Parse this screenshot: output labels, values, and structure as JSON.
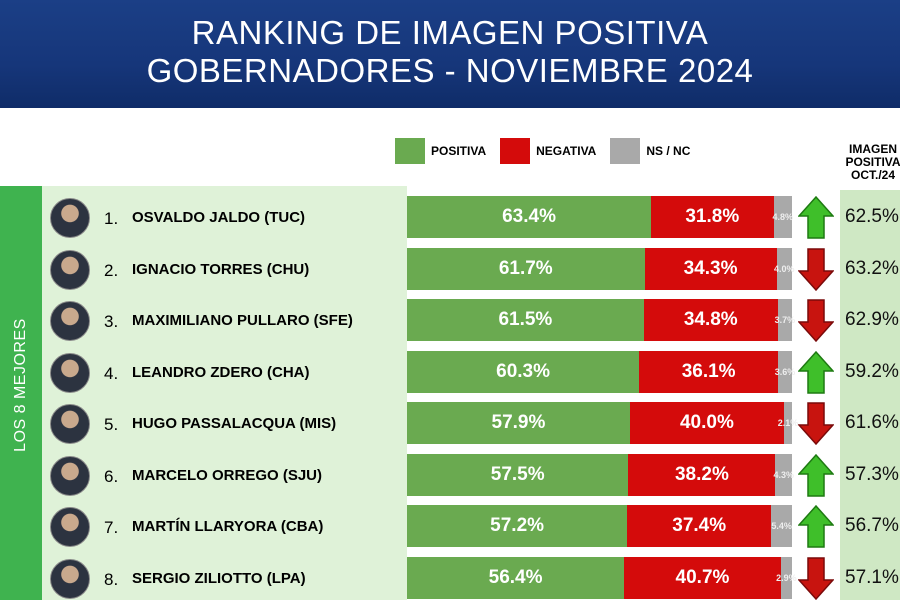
{
  "header": {
    "line1": "RANKING DE IMAGEN POSITIVA",
    "line2": "GOBERNADORES - NOVIEMBRE 2024"
  },
  "side_label": "LOS 8 MEJORES",
  "prev_header": {
    "l1": "IMAGEN",
    "l2": "POSITIVA",
    "l3": "OCT./24"
  },
  "chart_data": {
    "type": "bar",
    "stacked": true,
    "orientation": "horizontal",
    "legend": [
      {
        "name": "POSITIVA",
        "color": "#6aaa50"
      },
      {
        "name": "NEGATIVA",
        "color": "#d40b0b"
      },
      {
        "name": "NS / NC",
        "color": "#a9a9a9"
      }
    ],
    "categories": [
      "OSVALDO JALDO (TUC)",
      "IGNACIO TORRES (CHU)",
      "MAXIMILIANO PULLARO (SFE)",
      "LEANDRO ZDERO (CHA)",
      "HUGO PASSALACQUA (MIS)",
      "MARCELO ORREGO (SJU)",
      "MARTÍN LLARYORA (CBA)",
      "SERGIO ZILIOTTO (LPA)"
    ],
    "ranks": [
      "1.",
      "2.",
      "3.",
      "4.",
      "5.",
      "6.",
      "7.",
      "8."
    ],
    "series": [
      {
        "name": "POSITIVA",
        "values": [
          63.4,
          61.7,
          61.5,
          60.3,
          57.9,
          57.5,
          57.2,
          56.4
        ],
        "labels": [
          "63.4%",
          "61.7%",
          "61.5%",
          "60.3%",
          "57.9%",
          "57.5%",
          "57.2%",
          "56.4%"
        ]
      },
      {
        "name": "NEGATIVA",
        "values": [
          31.8,
          34.3,
          34.8,
          36.1,
          40.0,
          38.2,
          37.4,
          40.7
        ],
        "labels": [
          "31.8%",
          "34.3%",
          "34.8%",
          "36.1%",
          "40.0%",
          "38.2%",
          "37.4%",
          "40.7%"
        ]
      },
      {
        "name": "NS / NC",
        "values": [
          4.8,
          4.0,
          3.7,
          3.6,
          2.1,
          4.3,
          5.4,
          2.9
        ],
        "labels": [
          "4.8%",
          "4.0%",
          "3.7%",
          "3.6%",
          "2.1%",
          "4.3%",
          "5.4%",
          "2.9%"
        ]
      }
    ],
    "trend": [
      "up",
      "down",
      "down",
      "up",
      "down",
      "up",
      "up",
      "down"
    ],
    "prev_positive": [
      "62.5%",
      "63.2%",
      "62.9%",
      "59.2%",
      "61.6%",
      "57.3%",
      "56.7%",
      "57.1%"
    ],
    "xlim": [
      0,
      100
    ]
  }
}
